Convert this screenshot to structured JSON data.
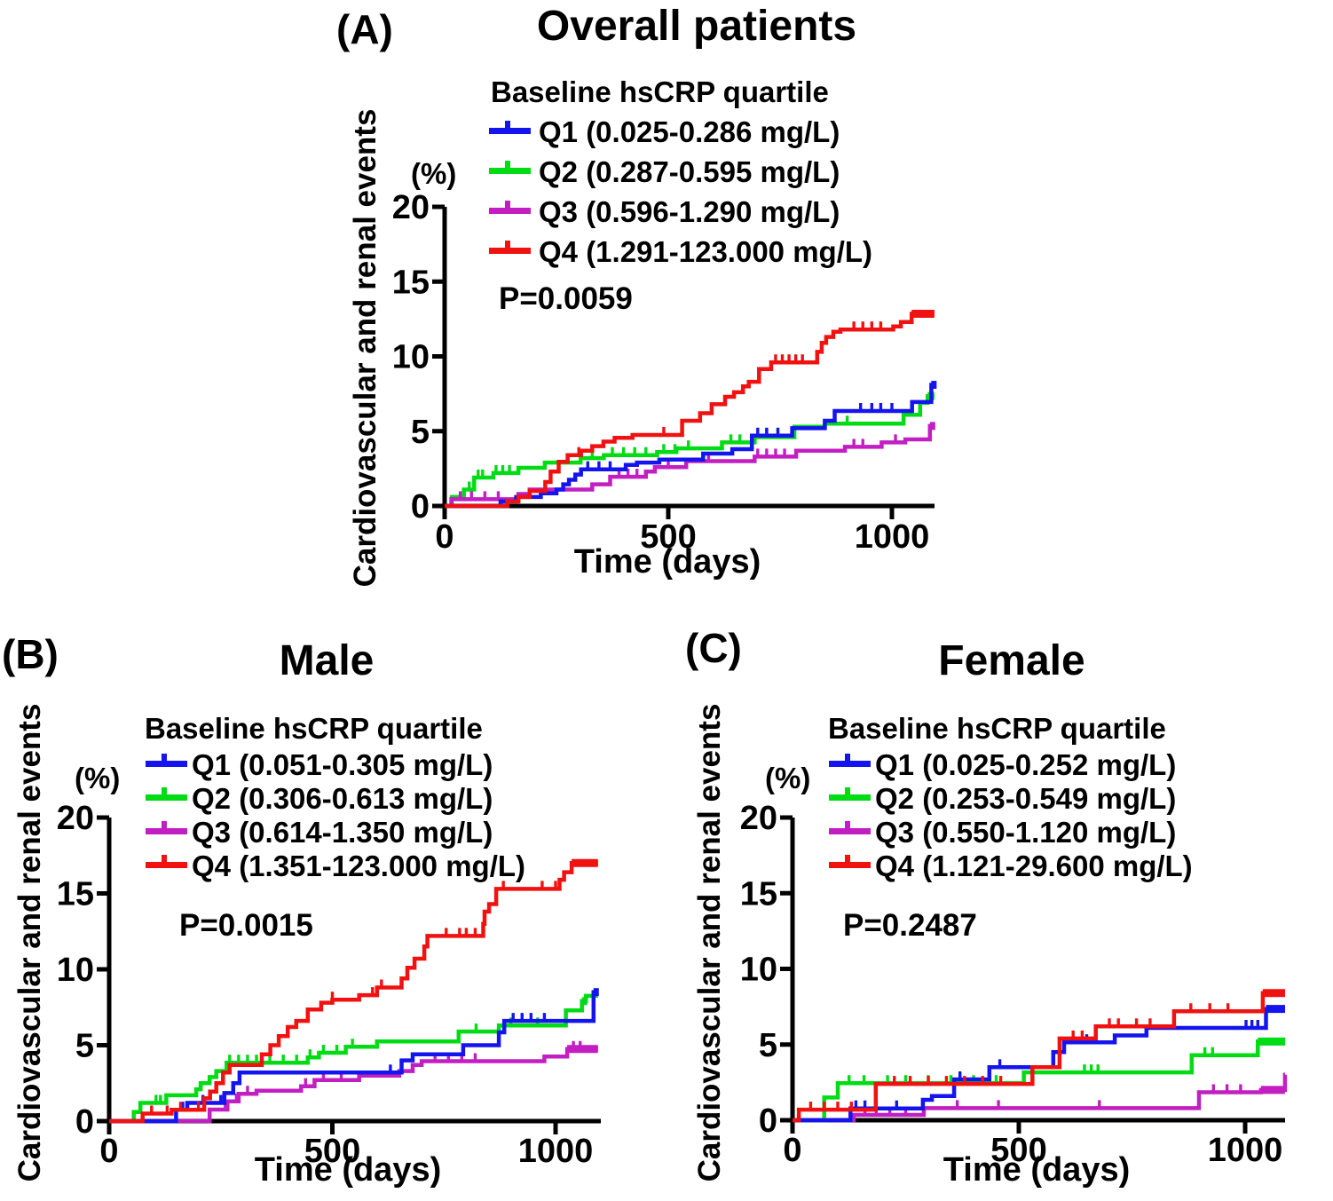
{
  "figure": {
    "description": "Kaplan-Meier cumulative incidence of cardiovascular and renal events by baseline hsCRP quartile"
  },
  "chart_data": [
    {
      "type": "line",
      "panel_letter": "(A)",
      "title": "Overall patients",
      "p_value": "P=0.0059",
      "legend_title": "Baseline hsCRP quartile",
      "y_axis_label": "Cardiovascular and renal events",
      "y_unit": "(%)",
      "x_label": "Time (days)",
      "x_ticks": [
        0,
        500,
        1000
      ],
      "y_ticks": [
        0,
        5,
        10,
        15,
        20
      ],
      "x_range": [
        0,
        1095
      ],
      "y_range": [
        0,
        20
      ],
      "grid": "off",
      "legend_position": "top-inside",
      "series": [
        {
          "name": "Q1 (0.025-0.286 mg/L)",
          "color": "#1414EE",
          "steps": [
            [
              125,
              0.3
            ],
            [
              160,
              0.6
            ],
            [
              215,
              0.85
            ],
            [
              250,
              1.1
            ],
            [
              265,
              1.45
            ],
            [
              278,
              1.75
            ],
            [
              292,
              2.1
            ],
            [
              305,
              2.45
            ],
            [
              405,
              2.75
            ],
            [
              430,
              2.9
            ],
            [
              480,
              3.1
            ],
            [
              578,
              3.5
            ],
            [
              643,
              3.8
            ],
            [
              687,
              4.7
            ],
            [
              777,
              5.2
            ],
            [
              850,
              5.7
            ],
            [
              872,
              6.35
            ],
            [
              1045,
              6.95
            ],
            [
              1088,
              8.1
            ]
          ],
          "censor_days": [
            320,
            345,
            370,
            700,
            720,
            745,
            930,
            955,
            975,
            1000
          ],
          "thick_from": 1088
        },
        {
          "name": "Q2 (0.287-0.595 mg/L)",
          "color": "#00DC14",
          "steps": [
            [
              16,
              0.6
            ],
            [
              43,
              1.1
            ],
            [
              66,
              1.9
            ],
            [
              109,
              2.2
            ],
            [
              165,
              2.55
            ],
            [
              224,
              2.9
            ],
            [
              304,
              3.2
            ],
            [
              356,
              3.4
            ],
            [
              475,
              3.6
            ],
            [
              518,
              3.85
            ],
            [
              620,
              4.25
            ],
            [
              693,
              4.6
            ],
            [
              782,
              5.3
            ],
            [
              850,
              5.5
            ],
            [
              1026,
              6.1
            ],
            [
              1063,
              6.9
            ],
            [
              1080,
              7.35
            ]
          ],
          "censor_days": [
            55,
            75,
            85,
            115,
            130,
            145,
            330,
            375,
            400,
            425,
            450,
            490,
            515,
            545,
            640,
            660,
            720,
            745,
            900
          ],
          "thick_from": 1080
        },
        {
          "name": "Q3 (0.596-1.290 mg/L)",
          "color": "#C21EC2",
          "steps": [
            [
              15,
              0.45
            ],
            [
              165,
              0.8
            ],
            [
              190,
              1.1
            ],
            [
              330,
              1.45
            ],
            [
              370,
              1.95
            ],
            [
              450,
              2.3
            ],
            [
              470,
              2.6
            ],
            [
              540,
              3.0
            ],
            [
              693,
              3.3
            ],
            [
              786,
              3.7
            ],
            [
              895,
              3.95
            ],
            [
              977,
              4.25
            ],
            [
              1030,
              4.45
            ],
            [
              1085,
              5.35
            ]
          ],
          "censor_days": [
            35,
            60,
            90,
            120,
            390,
            410,
            430,
            500,
            590,
            700,
            720,
            740,
            760,
            915,
            935,
            1008
          ],
          "thick_from": 1085
        },
        {
          "name": "Q4 (1.291-123.000 mg/L)",
          "color": "#F01111",
          "steps": [
            [
              140,
              0.3
            ],
            [
              165,
              0.6
            ],
            [
              190,
              1.0
            ],
            [
              225,
              1.6
            ],
            [
              237,
              2.3
            ],
            [
              255,
              2.95
            ],
            [
              275,
              3.4
            ],
            [
              305,
              3.7
            ],
            [
              330,
              4.0
            ],
            [
              355,
              4.3
            ],
            [
              380,
              4.55
            ],
            [
              420,
              4.75
            ],
            [
              531,
              5.7
            ],
            [
              571,
              6.2
            ],
            [
              597,
              6.8
            ],
            [
              627,
              7.3
            ],
            [
              647,
              7.6
            ],
            [
              667,
              8.0
            ],
            [
              680,
              8.3
            ],
            [
              703,
              9.15
            ],
            [
              730,
              9.6
            ],
            [
              833,
              10.3
            ],
            [
              843,
              10.9
            ],
            [
              853,
              11.3
            ],
            [
              869,
              11.65
            ],
            [
              885,
              11.8
            ],
            [
              1003,
              12.0
            ],
            [
              1020,
              12.3
            ],
            [
              1044,
              12.85
            ]
          ],
          "censor_days": [
            300,
            490,
            740,
            755,
            770,
            785,
            800,
            915,
            935,
            955,
            975
          ],
          "thick_from": 1044
        }
      ]
    },
    {
      "type": "line",
      "panel_letter": "(B)",
      "title": "Male",
      "p_value": "P=0.0015",
      "legend_title": "Baseline hsCRP quartile",
      "y_axis_label": "Cardiovascular and renal events",
      "y_unit": "(%)",
      "x_label": "Time (days)",
      "x_ticks": [
        0,
        500,
        1000
      ],
      "y_ticks": [
        0,
        5,
        10,
        15,
        20
      ],
      "x_range": [
        0,
        1095
      ],
      "y_range": [
        0,
        20
      ],
      "grid": "off",
      "legend_position": "top-inside",
      "series": [
        {
          "name": "Q1 (0.051-0.305 mg/L)",
          "color": "#1414EE",
          "steps": [
            [
              150,
              0.75
            ],
            [
              175,
              1.2
            ],
            [
              258,
              1.85
            ],
            [
              278,
              2.5
            ],
            [
              292,
              3.2
            ],
            [
              655,
              4.0
            ],
            [
              680,
              4.4
            ],
            [
              793,
              5.0
            ],
            [
              873,
              5.85
            ],
            [
              885,
              6.6
            ],
            [
              1085,
              8.5
            ]
          ],
          "censor_days": [
            165,
            210,
            250,
            630,
            905,
            925,
            945,
            975
          ],
          "thick_from": 1085
        },
        {
          "name": "Q2 (0.306-0.613 mg/L)",
          "color": "#00DC14",
          "steps": [
            [
              55,
              0.6
            ],
            [
              70,
              1.2
            ],
            [
              128,
              1.7
            ],
            [
              195,
              2.1
            ],
            [
              205,
              2.5
            ],
            [
              225,
              2.9
            ],
            [
              240,
              3.3
            ],
            [
              263,
              3.85
            ],
            [
              445,
              4.2
            ],
            [
              470,
              4.5
            ],
            [
              530,
              4.9
            ],
            [
              600,
              5.25
            ],
            [
              783,
              5.9
            ],
            [
              873,
              6.3
            ],
            [
              1023,
              7.3
            ],
            [
              1059,
              7.9
            ],
            [
              1068,
              8.25
            ]
          ],
          "censor_days": [
            105,
            115,
            270,
            290,
            310,
            330,
            360,
            390,
            420,
            450,
            480,
            510,
            545,
            822,
            900,
            960
          ],
          "thick_from": 1059
        },
        {
          "name": "Q3 (0.614-1.350 mg/L)",
          "color": "#C21EC2",
          "steps": [
            [
              225,
              0.76
            ],
            [
              265,
              1.3
            ],
            [
              290,
              1.8
            ],
            [
              330,
              2.0
            ],
            [
              430,
              2.3
            ],
            [
              460,
              2.7
            ],
            [
              560,
              3.0
            ],
            [
              650,
              3.3
            ],
            [
              680,
              3.7
            ],
            [
              700,
              3.95
            ],
            [
              975,
              4.25
            ],
            [
              1026,
              4.75
            ]
          ],
          "censor_days": [
            260,
            285,
            310,
            440,
            480,
            520,
            730,
            760,
            790,
            820,
            1040,
            1055
          ],
          "thick_from": 1026
        },
        {
          "name": "Q4 (1.351-123.000 mg/L)",
          "color": "#F01111",
          "steps": [
            [
              75,
              0.5
            ],
            [
              140,
              0.75
            ],
            [
              213,
              1.5
            ],
            [
              226,
              1.95
            ],
            [
              240,
              2.5
            ],
            [
              255,
              3.2
            ],
            [
              270,
              3.7
            ],
            [
              342,
              4.4
            ],
            [
              361,
              5.0
            ],
            [
              380,
              5.6
            ],
            [
              400,
              6.2
            ],
            [
              419,
              6.6
            ],
            [
              445,
              7.35
            ],
            [
              475,
              7.8
            ],
            [
              500,
              8.0
            ],
            [
              560,
              8.3
            ],
            [
              600,
              8.8
            ],
            [
              655,
              9.4
            ],
            [
              668,
              10.1
            ],
            [
              684,
              10.7
            ],
            [
              706,
              11.5
            ],
            [
              713,
              12.2
            ],
            [
              838,
              13.0
            ],
            [
              841,
              13.8
            ],
            [
              851,
              14.3
            ],
            [
              867,
              15.3
            ],
            [
              1009,
              15.9
            ],
            [
              1019,
              16.4
            ],
            [
              1036,
              17.0
            ]
          ],
          "censor_days": [
            95,
            130,
            160,
            200,
            500,
            590,
            610,
            755,
            785,
            800,
            820,
            883,
            970,
            1000
          ],
          "thick_from": 1036
        }
      ]
    },
    {
      "type": "line",
      "panel_letter": "(C)",
      "title": "Female",
      "p_value": "P=0.2487",
      "legend_title": "Baseline hsCRP quartile",
      "y_axis_label": "Cardiovascular and renal events",
      "y_unit": "(%)",
      "x_label": "Time (days)",
      "x_ticks": [
        0,
        500,
        1000
      ],
      "y_ticks": [
        0,
        5,
        10,
        15,
        20
      ],
      "x_range": [
        0,
        1095
      ],
      "y_range": [
        0,
        20
      ],
      "grid": "off",
      "legend_position": "top-inside",
      "series": [
        {
          "name": "Q1 (0.025-0.252 mg/L)",
          "color": "#1414EE",
          "steps": [
            [
              128,
              0.78
            ],
            [
              288,
              1.35
            ],
            [
              308,
              1.6
            ],
            [
              357,
              2.7
            ],
            [
              435,
              3.5
            ],
            [
              576,
              4.5
            ],
            [
              600,
              5.15
            ],
            [
              712,
              5.6
            ],
            [
              782,
              6.1
            ],
            [
              1046,
              7.35
            ]
          ],
          "censor_days": [
            140,
            160,
            185,
            230,
            370,
            458,
            620,
            650,
            1002,
            1015,
            1028
          ],
          "thick_from": 1046
        },
        {
          "name": "Q2 (0.253-0.549 mg/L)",
          "color": "#00DC14",
          "steps": [
            [
              70,
              1.5
            ],
            [
              100,
              2.45
            ],
            [
              511,
              3.16
            ],
            [
              882,
              4.3
            ],
            [
              1028,
              5.2
            ]
          ],
          "censor_days": [
            125,
            158,
            210,
            250,
            300,
            350,
            400,
            450,
            645,
            660,
            675,
            911,
            928
          ],
          "thick_from": 1028
        },
        {
          "name": "Q3 (0.550-1.120 mg/L)",
          "color": "#C21EC2",
          "steps": [
            [
              135,
              0.35
            ],
            [
              290,
              0.8
            ],
            [
              898,
              1.85
            ],
            [
              1035,
              2.0
            ],
            [
              1088,
              3.0
            ]
          ],
          "censor_days": [
            160,
            185,
            215,
            250,
            364,
            455,
            678,
            930,
            960,
            990
          ],
          "thick_from": 1035
        },
        {
          "name": "Q4 (1.121-29.600 mg/L)",
          "color": "#F01111",
          "steps": [
            [
              14,
              0.7
            ],
            [
              184,
              2.4
            ],
            [
              530,
              3.5
            ],
            [
              590,
              5.4
            ],
            [
              670,
              6.2
            ],
            [
              843,
              7.2
            ],
            [
              1039,
              8.4
            ]
          ],
          "censor_days": [
            40,
            70,
            100,
            130,
            225,
            260,
            300,
            340,
            380,
            420,
            460,
            620,
            640,
            700,
            720,
            760,
            790,
            880,
            922,
            962
          ],
          "thick_from": 1039
        }
      ]
    }
  ]
}
